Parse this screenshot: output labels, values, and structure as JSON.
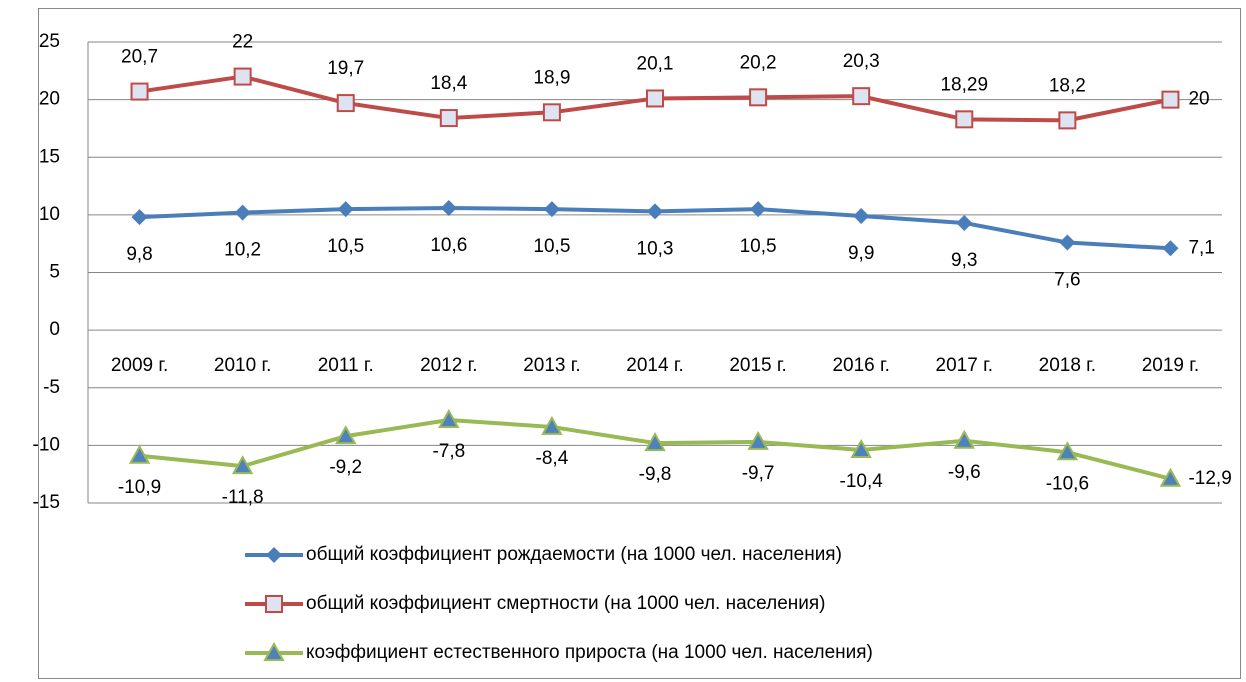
{
  "chart_data": {
    "type": "line",
    "categories": [
      "2009 г.",
      "2010 г.",
      "2011 г.",
      "2012 г.",
      "2013 г.",
      "2014 г.",
      "2015 г.",
      "2016 г.",
      "2017 г.",
      "2018 г.",
      "2019 г."
    ],
    "series": [
      {
        "name": "общий коэффициент рождаемости (на 1000 чел. населения)",
        "color": "#4a7ebb",
        "marker": "diamond",
        "values": [
          9.8,
          10.2,
          10.5,
          10.6,
          10.5,
          10.3,
          10.5,
          9.9,
          9.3,
          7.6,
          7.1
        ],
        "value_labels": [
          "9,8",
          "10,2",
          "10,5",
          "10,6",
          "10,5",
          "10,3",
          "10,5",
          "9,9",
          "9,3",
          "7,6",
          "7,1"
        ]
      },
      {
        "name": "общий коэффициент смертности (на 1000 чел. населения)",
        "color": "#be4b48",
        "marker": "square",
        "values": [
          20.7,
          22,
          19.7,
          18.4,
          18.9,
          20.1,
          20.2,
          20.3,
          18.29,
          18.2,
          20
        ],
        "value_labels": [
          "20,7",
          "22",
          "19,7",
          "18,4",
          "18,9",
          "20,1",
          "20,2",
          "20,3",
          "18,29",
          "18,2",
          "20"
        ]
      },
      {
        "name": "коэффициент естественного прироста (на 1000 чел. населения)",
        "color": "#98b954",
        "marker": "triangle",
        "values": [
          -10.9,
          -11.8,
          -9.2,
          -7.8,
          -8.4,
          -9.8,
          -9.7,
          -10.4,
          -9.6,
          -10.6,
          -12.9
        ],
        "value_labels": [
          "-10,9",
          "-11,8",
          "-9,2",
          "-7,8",
          "-8,4",
          "-9,8",
          "-9,7",
          "-10,4",
          "-9,6",
          "-10,6",
          "-12,9"
        ]
      }
    ],
    "ylim": [
      -15,
      25
    ],
    "yticks": [
      -15,
      -10,
      -5,
      0,
      5,
      10,
      15,
      20,
      25
    ],
    "grid": true,
    "legend": "bottom"
  }
}
